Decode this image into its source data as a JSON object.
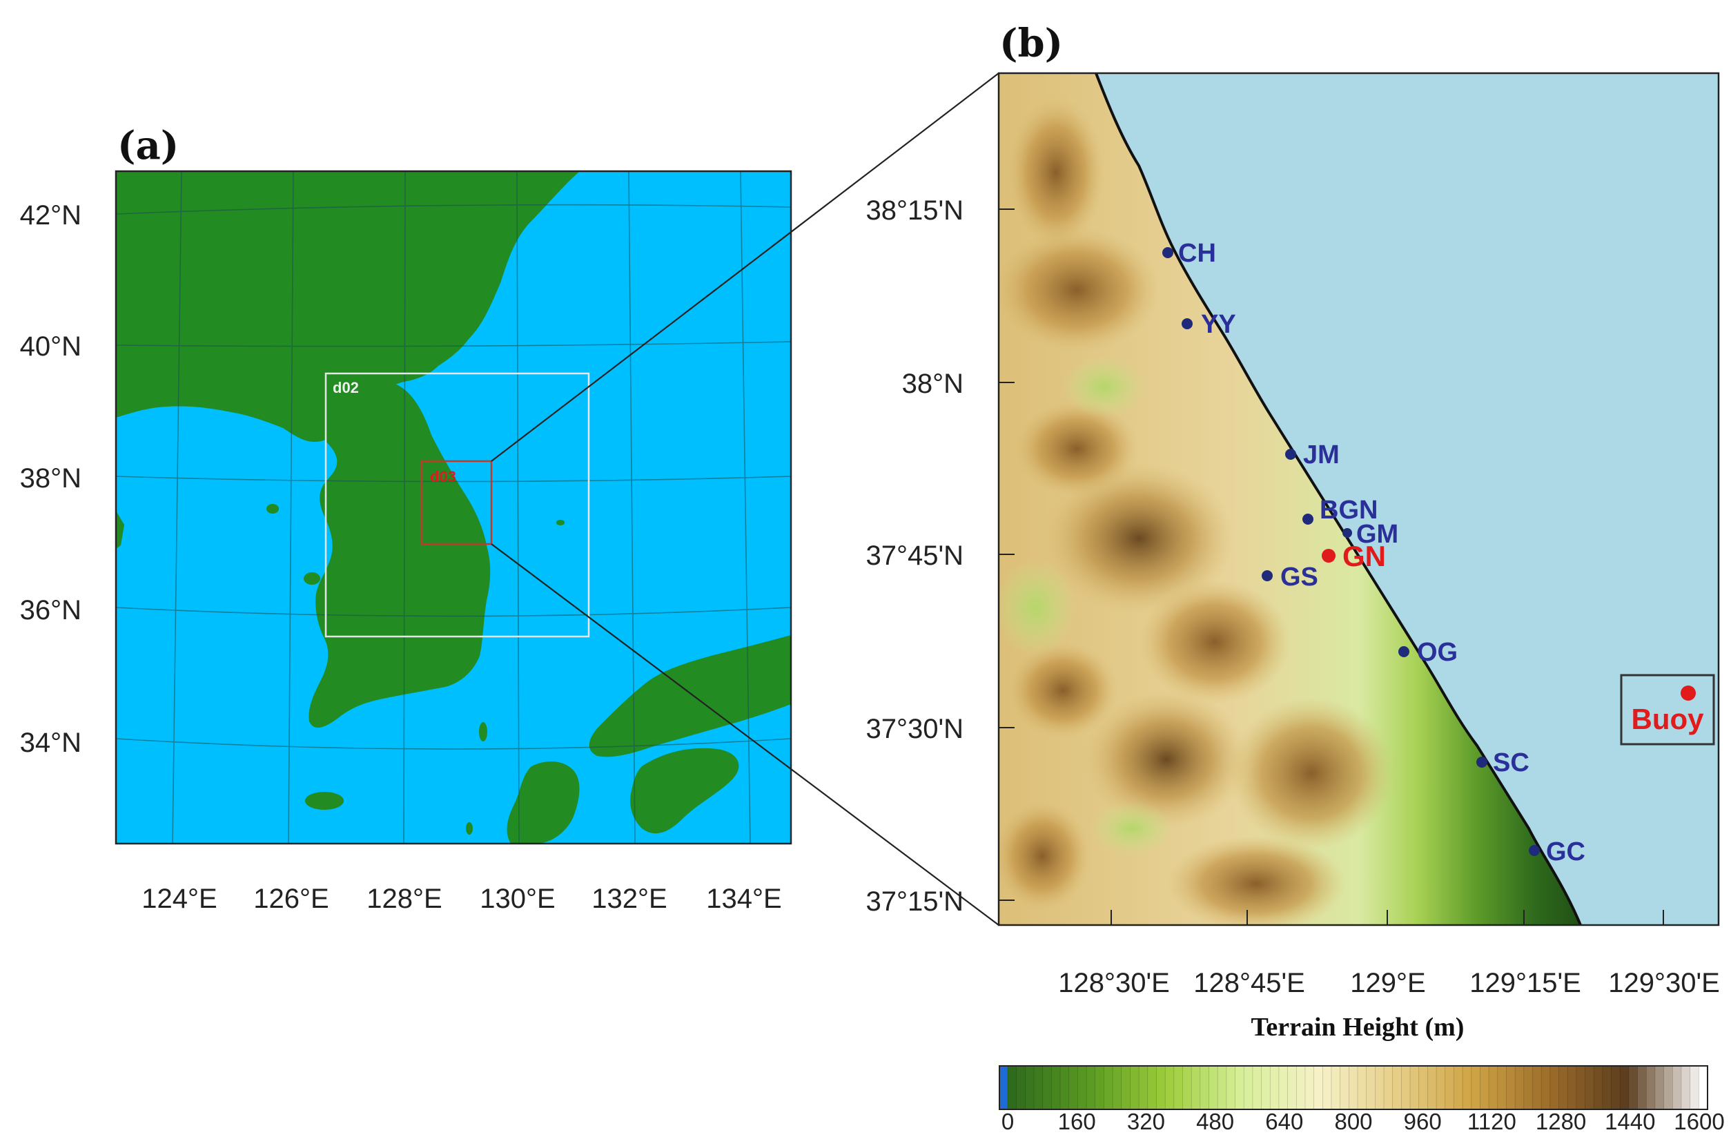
{
  "panel_a": {
    "label": "(a)",
    "lat_ticks": [
      "42°N",
      "40°N",
      "38°N",
      "36°N",
      "34°N"
    ],
    "lon_ticks": [
      "124°E",
      "126°E",
      "128°E",
      "130°E",
      "132°E",
      "134°E"
    ],
    "domain_d02": "d02",
    "domain_d03": "d03",
    "colors": {
      "ocean": "#00bfff",
      "land": "#228b22",
      "d02_box": "#e6e6e6",
      "d03_box": "#c0392b"
    }
  },
  "panel_b": {
    "label": "(b)",
    "lat_ticks": [
      "38°15'N",
      "38°N",
      "37°45'N",
      "37°30'N",
      "37°15'N"
    ],
    "lon_ticks": [
      "128°30'E",
      "128°45'E",
      "129°E",
      "129°15'E",
      "129°30'E"
    ],
    "stations": [
      {
        "id": "CH",
        "label": "CH",
        "color": "#1f2a7a"
      },
      {
        "id": "YY",
        "label": "YY",
        "color": "#1f2a7a"
      },
      {
        "id": "JM",
        "label": "JM",
        "color": "#1f2a7a"
      },
      {
        "id": "BGN",
        "label": "BGN",
        "color": "#1f2a7a"
      },
      {
        "id": "GM",
        "label": "GM",
        "color": "#1f2a7a"
      },
      {
        "id": "GN",
        "label": "GN",
        "color": "#e11b1b"
      },
      {
        "id": "GS",
        "label": "GS",
        "color": "#1f2a7a"
      },
      {
        "id": "OG",
        "label": "OG",
        "color": "#1f2a7a"
      },
      {
        "id": "SC",
        "label": "SC",
        "color": "#1f2a7a"
      },
      {
        "id": "GC",
        "label": "GC",
        "color": "#1f2a7a"
      }
    ],
    "buoy_label": "Buoy",
    "colors": {
      "ocean": "#add8e6",
      "coast": "#111111"
    }
  },
  "colorbar": {
    "title": "Terrain Height (m)",
    "ticks": [
      "0",
      "160",
      "320",
      "480",
      "640",
      "800",
      "960",
      "1120",
      "1280",
      "1440",
      "1600"
    ],
    "colors": [
      "#1e6ad6",
      "#2f6b1c",
      "#5a9a22",
      "#9ccc3a",
      "#d8ef9a",
      "#f6f1c8",
      "#e6cf88",
      "#cfa445",
      "#9c6c2a",
      "#5b3d1e",
      "#ffffff"
    ]
  }
}
